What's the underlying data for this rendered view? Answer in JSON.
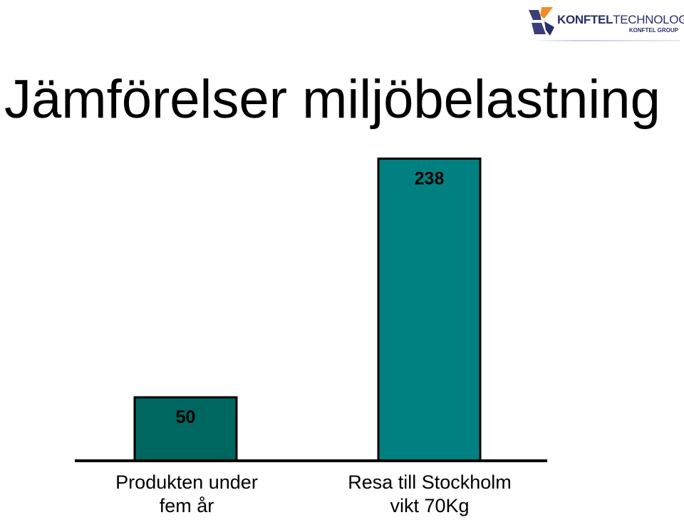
{
  "slide": {
    "title": "Jämförelser miljöbelastning"
  },
  "logo": {
    "brand_bold": "KONFTEL",
    "brand_light": "TECHNOLOGY",
    "group": "KONFTEL GROUP",
    "icon": "konftel-logo-mark"
  },
  "chart_data": {
    "type": "bar",
    "categories": [
      [
        "Produkten under",
        "fem år"
      ],
      [
        "Resa till Stockholm",
        "vikt 70Kg"
      ]
    ],
    "values": [
      50,
      238
    ],
    "data_labels": [
      "50",
      "238"
    ],
    "bar_colors": [
      "#006660",
      "#008080"
    ],
    "ylim": [
      0,
      250
    ],
    "grid": false,
    "legend": "none"
  }
}
